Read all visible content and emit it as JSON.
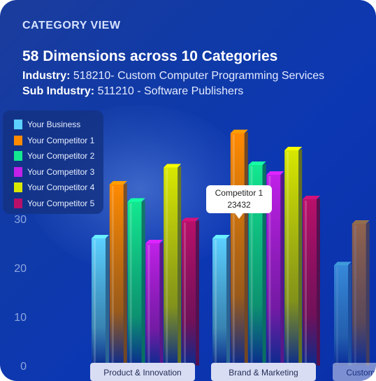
{
  "header": {
    "section_label": "CATEGORY VIEW",
    "headline": "58 Dimensions across 10 Categories",
    "industry_label": "Industry:",
    "industry_value": "518210- Custom Computer Programming Services",
    "subindustry_label": "Sub Industry:",
    "subindustry_value": "511210 - Software Publishers"
  },
  "tooltip": {
    "series": "Competitor 1",
    "value": "23432"
  },
  "chart_data": {
    "type": "bar",
    "title": "",
    "xlabel": "",
    "ylabel": "",
    "ylim": [
      0,
      50
    ],
    "yticks": [
      0,
      10,
      20,
      30
    ],
    "grid": false,
    "legend_position": "top-left",
    "categories": [
      "Product & Innovation",
      "Brand & Marketing",
      "Custom"
    ],
    "series": [
      {
        "name": "Your Business",
        "color": "#5cd0ff",
        "values": [
          26,
          26,
          20.5
        ]
      },
      {
        "name": "Your Competitor 1",
        "color": "#ff8a00",
        "values": [
          37,
          47.5,
          29
        ]
      },
      {
        "name": "Your Competitor 2",
        "color": "#12e890",
        "values": [
          33.5,
          41,
          null
        ]
      },
      {
        "name": "Your Competitor 3",
        "color": "#c020e8",
        "values": [
          25,
          39,
          null
        ]
      },
      {
        "name": "Your Competitor 4",
        "color": "#d8e800",
        "values": [
          40.5,
          44,
          null
        ]
      },
      {
        "name": "Your Competitor 5",
        "color": "#b8106a",
        "values": [
          29.5,
          34,
          null
        ]
      }
    ]
  }
}
